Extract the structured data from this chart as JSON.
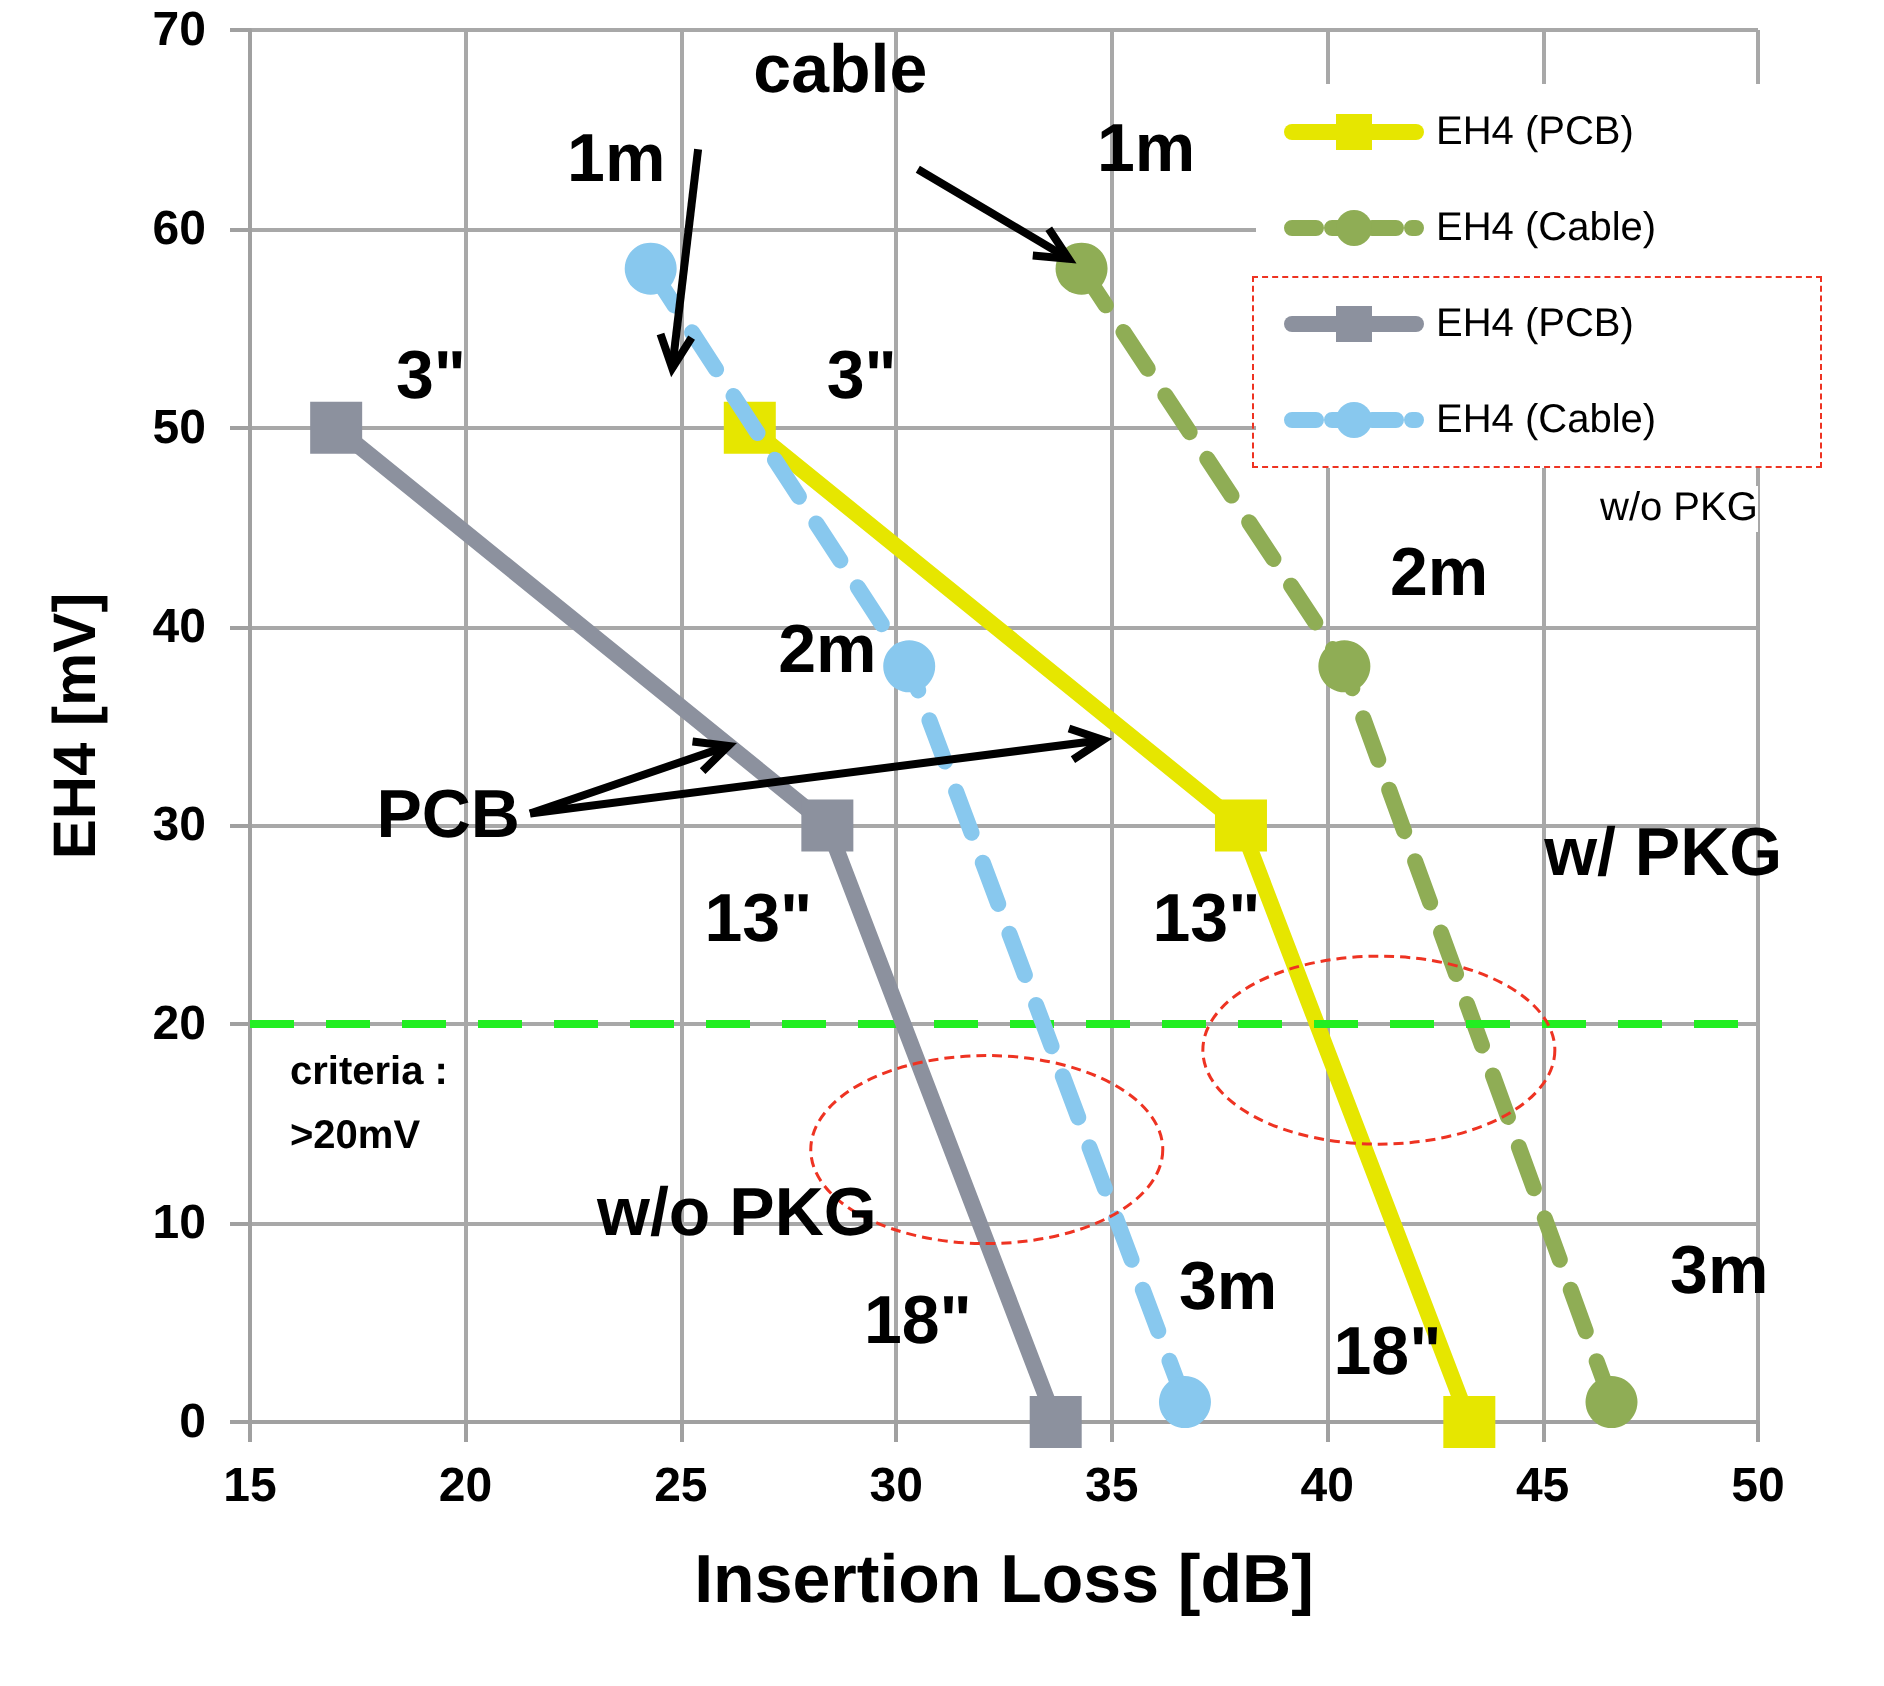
{
  "chart_data": {
    "type": "line",
    "xlabel": "Insertion Loss [dB]",
    "ylabel": "EH4 [mV]",
    "xlim": [
      15,
      50
    ],
    "xticks": [
      15,
      20,
      25,
      30,
      35,
      40,
      45,
      50
    ],
    "ylim": [
      0,
      70
    ],
    "yticks": [
      0,
      10,
      20,
      30,
      40,
      50,
      60,
      70
    ],
    "grid": true,
    "legend": "top right",
    "series": [
      {
        "name": "EH4 (PCB)",
        "color": "#e6e600",
        "marker": "square",
        "line_style": "solid",
        "x": [
          26.6,
          38.0,
          43.3
        ],
        "values": [
          50,
          30,
          0
        ]
      },
      {
        "name": "EH4 (Cable)",
        "color": "#8fad55",
        "marker": "circle",
        "line_style": "dashed",
        "x": [
          34.3,
          40.4,
          46.6
        ],
        "values": [
          58,
          38,
          1
        ]
      },
      {
        "name": "EH4 (PCB)",
        "color": "#8c919e",
        "marker": "square",
        "line_style": "solid",
        "x": [
          17.0,
          28.4,
          33.7
        ],
        "values": [
          50,
          30,
          0
        ]
      },
      {
        "name": "EH4 (Cable)",
        "color": "#88c8ee",
        "marker": "circle",
        "line_style": "dashed",
        "x": [
          24.3,
          30.3,
          36.7
        ],
        "values": [
          58,
          38,
          1
        ]
      }
    ],
    "ref_lines": [
      {
        "axis": "y",
        "value": 20,
        "label": "criteria : >20mV",
        "color": "#22ee22",
        "line_style": "dashed"
      }
    ],
    "annotations": [
      "1m",
      "3\"",
      "3\"",
      "1m",
      "2m",
      "2m",
      "13\"",
      "13\"",
      "18\"",
      "18\"",
      "3m",
      "3m",
      "cable",
      {
        "text": "PCB",
        "x": 26.1,
        "y": 34
      },
      "w/ PKG",
      "w/o PKG",
      "w/o PKG"
    ]
  }
}
